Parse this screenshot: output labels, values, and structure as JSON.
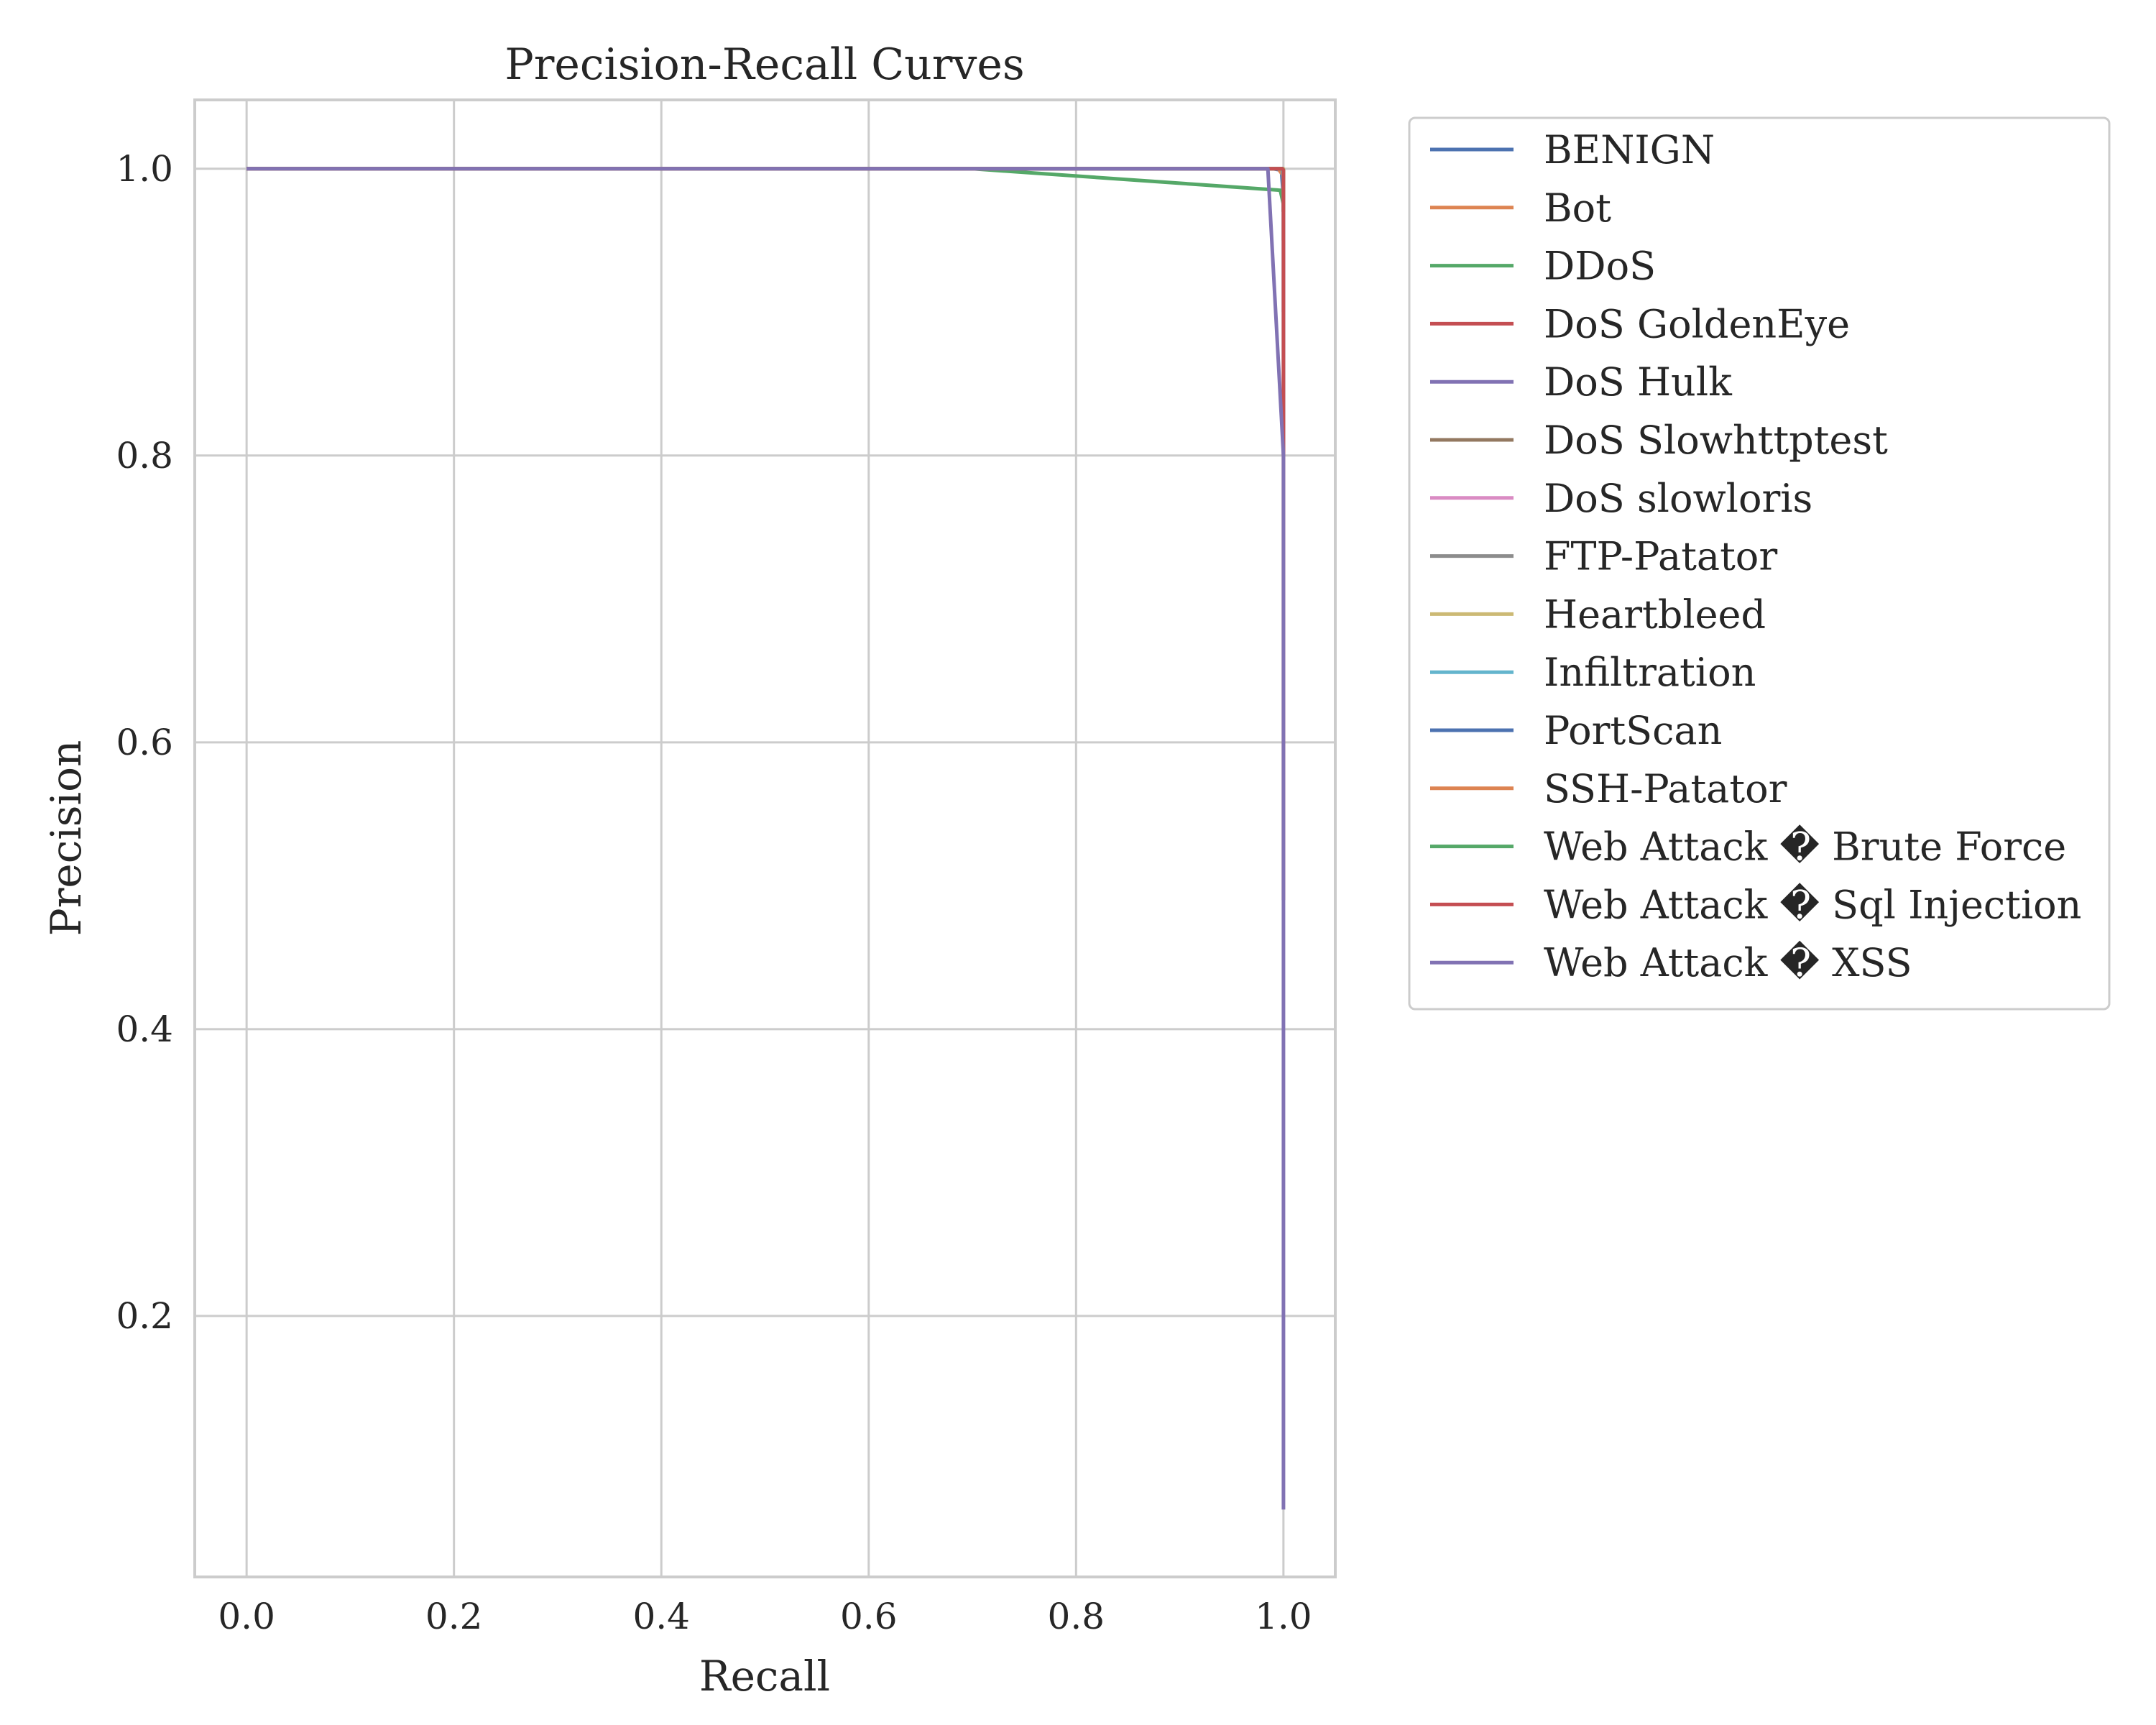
{
  "chart_data": {
    "type": "line",
    "title": "Precision-Recall Curves",
    "xlabel": "Recall",
    "ylabel": "Precision",
    "xlim": [
      -0.05,
      1.05
    ],
    "ylim": [
      0.018,
      1.048
    ],
    "xticks": [
      0.0,
      0.2,
      0.4,
      0.6,
      0.8,
      1.0
    ],
    "xtick_labels": [
      "0.0",
      "0.2",
      "0.4",
      "0.6",
      "0.8",
      "1.0"
    ],
    "yticks": [
      0.2,
      0.4,
      0.6,
      0.8,
      1.0
    ],
    "ytick_labels": [
      "0.2",
      "0.4",
      "0.6",
      "0.8",
      "1.0"
    ],
    "grid": true,
    "legend_position": "outside-right",
    "series": [
      {
        "name": "BENIGN",
        "color": "#4c72b0",
        "x": [
          0.0,
          0.99,
          0.998,
          1.0,
          1.0
        ],
        "y": [
          1.0,
          1.0,
          0.999,
          0.98,
          0.8
        ]
      },
      {
        "name": "Bot",
        "color": "#dd8452",
        "x": [
          0.0,
          0.995,
          1.0,
          1.0
        ],
        "y": [
          1.0,
          1.0,
          0.995,
          0.95
        ]
      },
      {
        "name": "DDoS",
        "color": "#55a868",
        "x": [
          0.0,
          0.7,
          0.997,
          1.0
        ],
        "y": [
          1.0,
          1.0,
          0.985,
          0.975
        ]
      },
      {
        "name": "DoS GoldenEye",
        "color": "#c44e52",
        "x": [
          0.0,
          0.999,
          1.0,
          1.0
        ],
        "y": [
          1.0,
          1.0,
          0.999,
          0.97
        ]
      },
      {
        "name": "DoS Hulk",
        "color": "#8172b3",
        "x": [
          0.0,
          0.999,
          1.0,
          1.0
        ],
        "y": [
          1.0,
          1.0,
          0.99,
          0.9
        ]
      },
      {
        "name": "DoS Slowhttptest",
        "color": "#937860",
        "x": [
          0.0,
          0.998,
          1.0,
          1.0
        ],
        "y": [
          1.0,
          1.0,
          0.998,
          0.97
        ]
      },
      {
        "name": "DoS slowloris",
        "color": "#da8bc3",
        "x": [
          0.0,
          0.998,
          1.0,
          1.0
        ],
        "y": [
          1.0,
          1.0,
          0.998,
          0.97
        ]
      },
      {
        "name": "FTP-Patator",
        "color": "#8c8c8c",
        "x": [
          0.0,
          0.999,
          1.0,
          1.0
        ],
        "y": [
          1.0,
          1.0,
          0.999,
          0.97
        ]
      },
      {
        "name": "Heartbleed",
        "color": "#ccb974",
        "x": [
          0.0,
          1.0,
          1.0
        ],
        "y": [
          1.0,
          1.0,
          0.98
        ]
      },
      {
        "name": "Infiltration",
        "color": "#64b5cd",
        "x": [
          0.0,
          0.999,
          1.0,
          1.0
        ],
        "y": [
          1.0,
          1.0,
          0.99,
          0.95
        ]
      },
      {
        "name": "PortScan",
        "color": "#4c72b0",
        "x": [
          0.0,
          0.999,
          1.0,
          1.0
        ],
        "y": [
          1.0,
          1.0,
          0.999,
          0.97
        ]
      },
      {
        "name": "SSH-Patator",
        "color": "#dd8452",
        "x": [
          0.0,
          0.999,
          1.0,
          1.0
        ],
        "y": [
          1.0,
          1.0,
          0.999,
          0.97
        ]
      },
      {
        "name": "Web Attack � Brute Force",
        "color": "#55a868",
        "x": [
          0.0,
          0.999,
          1.0,
          1.0
        ],
        "y": [
          1.0,
          1.0,
          0.999,
          0.97
        ]
      },
      {
        "name": "Web Attack � Sql Injection",
        "color": "#c44e52",
        "x": [
          0.0,
          0.999,
          1.0,
          1.0,
          1.0
        ],
        "y": [
          1.0,
          1.0,
          0.999,
          0.75,
          0.49
        ]
      },
      {
        "name": "Web Attack � XSS",
        "color": "#8172b3",
        "x": [
          0.0,
          0.985,
          1.0,
          1.0
        ],
        "y": [
          1.0,
          1.0,
          0.8,
          0.065
        ]
      }
    ]
  }
}
